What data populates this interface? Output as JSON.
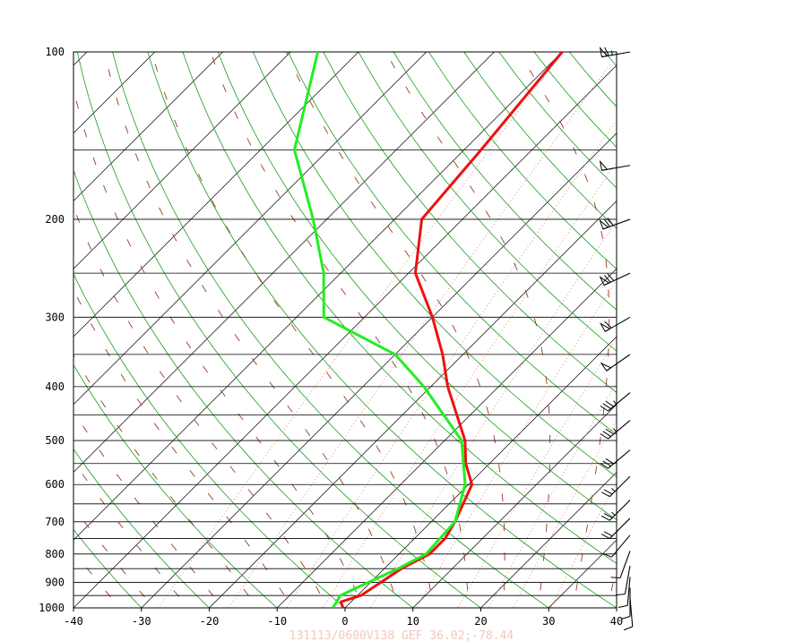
{
  "chart_data": {
    "type": "skew-t",
    "x_ticks": [
      -40,
      -30,
      -20,
      -10,
      0,
      10,
      20,
      30,
      40
    ],
    "p_ticks": [
      100,
      200,
      300,
      400,
      500,
      600,
      700,
      800,
      900,
      1000
    ],
    "xlim": [
      -40,
      40
    ],
    "plim": [
      1000,
      100
    ],
    "isobar_levels": [
      100,
      150,
      200,
      250,
      300,
      350,
      400,
      450,
      500,
      550,
      600,
      650,
      700,
      750,
      800,
      850,
      900,
      950,
      1000
    ],
    "footer_text": "131113/0600V138  GEF  36.02;-78.44",
    "colors": {
      "temperature": "#ee1111",
      "dewpoint": "#22ee22",
      "dry_adiabat": "#1a9c1a",
      "mixing_ratio": "#c87a6a",
      "moist_adiabat": "#9a3a22",
      "isotherm": "#000000",
      "wind_barb": "#000000"
    },
    "series": [
      {
        "name": "temperature",
        "points": [
          {
            "p": 1000,
            "t": -0.3
          },
          {
            "p": 975,
            "t": -1.5
          },
          {
            "p": 950,
            "t": 0.5
          },
          {
            "p": 900,
            "t": 1.5
          },
          {
            "p": 850,
            "t": 2.5
          },
          {
            "p": 800,
            "t": 4.5
          },
          {
            "p": 750,
            "t": 4.5
          },
          {
            "p": 700,
            "t": 3.5
          },
          {
            "p": 600,
            "t": 0.5
          },
          {
            "p": 550,
            "t": -3.5
          },
          {
            "p": 500,
            "t": -7
          },
          {
            "p": 400,
            "t": -17.5
          },
          {
            "p": 350,
            "t": -23
          },
          {
            "p": 300,
            "t": -30
          },
          {
            "p": 250,
            "t": -39
          },
          {
            "p": 200,
            "t": -46
          },
          {
            "p": 150,
            "t": -47.5
          },
          {
            "p": 100,
            "t": -50
          }
        ]
      },
      {
        "name": "dewpoint",
        "points": [
          {
            "p": 1000,
            "t": -1.8
          },
          {
            "p": 950,
            "t": -2.5
          },
          {
            "p": 925,
            "t": -1.5
          },
          {
            "p": 850,
            "t": 2
          },
          {
            "p": 800,
            "t": 4
          },
          {
            "p": 700,
            "t": 3.5
          },
          {
            "p": 600,
            "t": -0.5
          },
          {
            "p": 500,
            "t": -7.5
          },
          {
            "p": 400,
            "t": -21
          },
          {
            "p": 350,
            "t": -30
          },
          {
            "p": 300,
            "t": -46
          },
          {
            "p": 250,
            "t": -52.5
          },
          {
            "p": 200,
            "t": -62
          },
          {
            "p": 150,
            "t": -75
          },
          {
            "p": 100,
            "t": -86
          }
        ]
      }
    ],
    "wind_barbs": [
      {
        "p": 100,
        "dir": 260,
        "speed": 65
      },
      {
        "p": 160,
        "dir": 260,
        "speed": 50
      },
      {
        "p": 200,
        "dir": 250,
        "speed": 70
      },
      {
        "p": 250,
        "dir": 245,
        "speed": 70
      },
      {
        "p": 300,
        "dir": 240,
        "speed": 60
      },
      {
        "p": 350,
        "dir": 235,
        "speed": 50
      },
      {
        "p": 410,
        "dir": 230,
        "speed": 35
      },
      {
        "p": 460,
        "dir": 230,
        "speed": 35
      },
      {
        "p": 520,
        "dir": 230,
        "speed": 30
      },
      {
        "p": 580,
        "dir": 225,
        "speed": 25
      },
      {
        "p": 640,
        "dir": 225,
        "speed": 25
      },
      {
        "p": 690,
        "dir": 225,
        "speed": 20
      },
      {
        "p": 740,
        "dir": 220,
        "speed": 10
      },
      {
        "p": 790,
        "dir": 200,
        "speed": 10
      },
      {
        "p": 840,
        "dir": 190,
        "speed": 10
      },
      {
        "p": 880,
        "dir": 185,
        "speed": 10
      },
      {
        "p": 920,
        "dir": 180,
        "speed": 10
      },
      {
        "p": 960,
        "dir": 175,
        "speed": 10
      }
    ]
  }
}
